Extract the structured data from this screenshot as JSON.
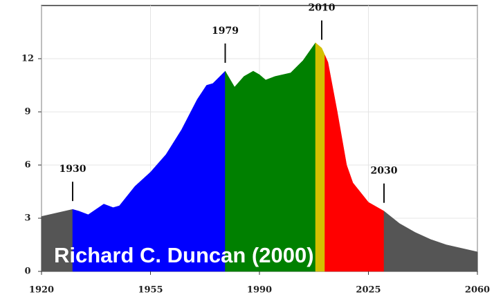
{
  "chart_data": {
    "type": "area",
    "credit": "Richard C. Duncan (2000)",
    "xlim": [
      1920,
      2060
    ],
    "xticks": [
      1920,
      1955,
      1990,
      2025,
      2060
    ],
    "ylim": [
      0,
      15
    ],
    "yticks": [
      0,
      3,
      6,
      9,
      12
    ],
    "grid": true,
    "annotations": [
      1930,
      1979,
      2010,
      2030
    ],
    "series": [
      {
        "color": "#555555",
        "x": [
          1920,
          1925,
          1930
        ],
        "values": [
          3.1,
          3.3,
          3.5
        ]
      },
      {
        "color": "#0000ff",
        "x": [
          1930,
          1932,
          1935,
          1940,
          1943,
          1945,
          1950,
          1955,
          1960,
          1965,
          1970,
          1973,
          1975,
          1979
        ],
        "values": [
          3.5,
          3.4,
          3.2,
          3.8,
          3.6,
          3.7,
          4.8,
          5.6,
          6.6,
          8.0,
          9.7,
          10.5,
          10.6,
          11.3
        ]
      },
      {
        "color": "#008000",
        "x": [
          1979,
          1982,
          1985,
          1988,
          1990,
          1992,
          1995,
          2000,
          2004,
          2008
        ],
        "values": [
          11.3,
          10.4,
          11.0,
          11.3,
          11.1,
          10.8,
          11.0,
          11.2,
          11.9,
          12.9
        ]
      },
      {
        "color": "#d4c000",
        "x": [
          2008,
          2010,
          2011
        ],
        "values": [
          12.9,
          12.6,
          12.2
        ]
      },
      {
        "color": "#ff0000",
        "x": [
          2011,
          2012,
          2015,
          2018,
          2020,
          2025,
          2030
        ],
        "values": [
          12.2,
          11.8,
          9.0,
          6.0,
          5.0,
          3.9,
          3.4
        ]
      },
      {
        "color": "#555555",
        "x": [
          2030,
          2035,
          2040,
          2045,
          2050,
          2055,
          2060
        ],
        "values": [
          3.4,
          2.7,
          2.2,
          1.8,
          1.5,
          1.3,
          1.1
        ]
      }
    ]
  }
}
